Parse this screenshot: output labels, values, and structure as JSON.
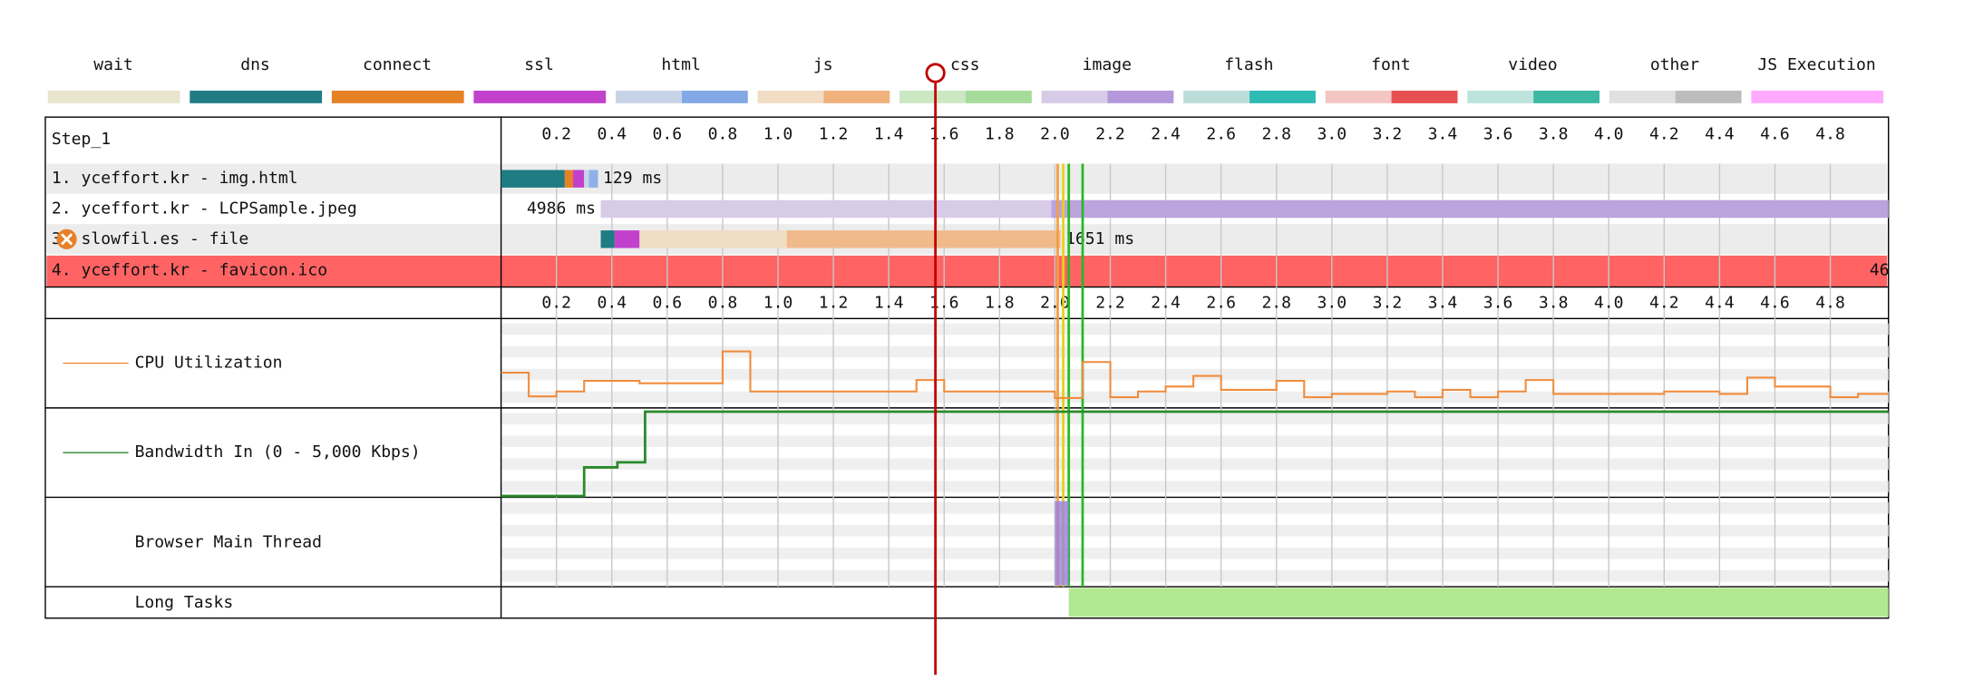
{
  "legend": [
    {
      "name": "wait",
      "colors": [
        "#e9e5cf"
      ]
    },
    {
      "name": "dns",
      "colors": [
        "#1f7c83"
      ]
    },
    {
      "name": "connect",
      "colors": [
        "#e58226"
      ]
    },
    {
      "name": "ssl",
      "colors": [
        "#c141cd"
      ]
    },
    {
      "name": "html",
      "colors": [
        "#c7d4e8",
        "#82a8e6"
      ]
    },
    {
      "name": "js",
      "colors": [
        "#f1dcc4",
        "#f0b27d"
      ]
    },
    {
      "name": "css",
      "colors": [
        "#cce8c3",
        "#a5dc9a"
      ]
    },
    {
      "name": "image",
      "colors": [
        "#d8cbe8",
        "#b498db"
      ]
    },
    {
      "name": "flash",
      "colors": [
        "#bcdcda",
        "#2fbbb3"
      ]
    },
    {
      "name": "font",
      "colors": [
        "#f3c6c3",
        "#e75050"
      ]
    },
    {
      "name": "video",
      "colors": [
        "#bde3dd",
        "#3cb9a3"
      ]
    },
    {
      "name": "other",
      "colors": [
        "#e0e0e0",
        "#bcbcbc"
      ]
    },
    {
      "name": "JS Execution",
      "colors": [
        "#ffaaff"
      ]
    }
  ],
  "step": "Step_1",
  "xlim": [
    0,
    5.01
  ],
  "ticks": [
    0.2,
    0.4,
    0.6,
    0.8,
    {
      "value": 1,
      "label": "1.0"
    },
    1.2,
    1.4,
    1.6,
    1.8,
    {
      "value": 2,
      "label": "2.0"
    },
    2.2,
    2.4,
    2.6,
    2.8,
    {
      "value": 3,
      "label": "3.0"
    },
    3.2,
    3.4,
    3.6,
    3.8,
    {
      "value": 4,
      "label": "4.0"
    },
    4.2,
    4.4,
    4.6,
    4.8
  ],
  "requests": [
    {
      "label": "1. yceffort.kr - img.html",
      "timing": "129 ms",
      "segments": [
        {
          "phase": "dns",
          "start": 0,
          "end": 0.23
        },
        {
          "phase": "connect",
          "start": 0.23,
          "end": 0.26
        },
        {
          "phase": "ssl",
          "start": 0.26,
          "end": 0.3
        },
        {
          "phase": "html",
          "start": 0.3,
          "end": 0.35
        }
      ]
    },
    {
      "label": "2. yceffort.kr - LCPSample.jpeg",
      "timing": "4986 ms",
      "segments": [
        {
          "phase": "image",
          "start": 0.36,
          "end": 5.01
        }
      ]
    },
    {
      "label": "3. slowfil.es - file",
      "timing": "1651 ms",
      "error": true,
      "segments": [
        {
          "phase": "dns",
          "start": 0.36,
          "end": 0.41
        },
        {
          "phase": "ssl",
          "start": 0.41,
          "end": 0.5
        },
        {
          "phase": "js",
          "start": 0.5,
          "end": 2.02
        }
      ]
    },
    {
      "label": "4. yceffort.kr - favicon.ico",
      "timing": "46",
      "error_row": true,
      "segments": []
    }
  ],
  "markers": [
    {
      "time": 2.01,
      "color": "#f0a040"
    },
    {
      "time": 2.03,
      "color": "#e8d020"
    },
    {
      "time": 2.05,
      "color": "#28b828"
    },
    {
      "time": 2.1,
      "color": "#28b828"
    }
  ],
  "cpu": {
    "label": "CPU Utilization",
    "color": "#f08c3c",
    "ylim": [
      0,
      100
    ],
    "times": [
      0,
      0.1,
      0.2,
      0.3,
      0.5,
      0.8,
      0.9,
      1.5,
      1.6,
      2.0,
      2.1,
      2.2,
      2.3,
      2.4,
      2.5,
      2.6,
      2.8,
      2.9,
      3.0,
      3.2,
      3.3,
      3.4,
      3.5,
      3.6,
      3.7,
      3.8,
      4.0,
      4.2,
      4.4,
      4.5,
      4.6,
      4.8,
      4.9
    ],
    "values": [
      40,
      11,
      17,
      30,
      27,
      66,
      17,
      31,
      17,
      9,
      53,
      10,
      17,
      23,
      36,
      19,
      30,
      10,
      14,
      17,
      10,
      19,
      10,
      17,
      31,
      14,
      14,
      17,
      14,
      34,
      23,
      10,
      14
    ]
  },
  "bandwidth": {
    "label": "Bandwidth In (0 - 5,000 Kbps)",
    "color": "#2a8a2a",
    "ylim": [
      0,
      5000
    ],
    "times": [
      0,
      0.3,
      0.42,
      0.52
    ],
    "values": [
      0,
      1700,
      2000,
      5000
    ]
  },
  "main_thread": {
    "label": "Browser Main Thread",
    "busy": [
      {
        "start": 2.0,
        "end": 2.05
      }
    ]
  },
  "long_tasks": {
    "label": "Long Tasks",
    "spans": [
      {
        "start": 2.05,
        "end": 5.01
      }
    ]
  }
}
